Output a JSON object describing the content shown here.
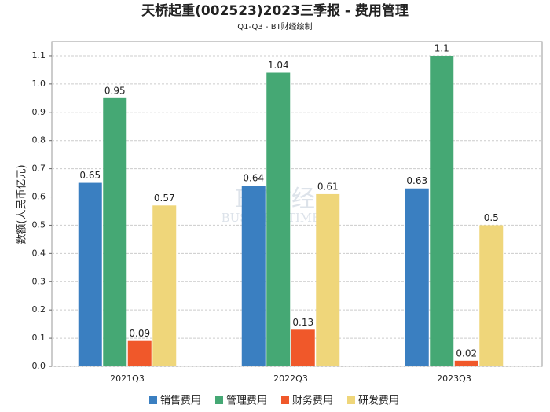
{
  "chart_data": {
    "type": "bar",
    "title": "天桥起重(002523)2023三季报 - 费用管理",
    "subtitle": "Q1-Q3 - BT财经绘制",
    "ylabel": "数额(人民币亿元)",
    "watermark": [
      "BT财经",
      "BUSINESSTIMES"
    ],
    "categories": [
      "2021Q3",
      "2022Q3",
      "2023Q3"
    ],
    "series": [
      {
        "name": "销售费用",
        "color": "#3a7fc1",
        "values": [
          0.65,
          0.64,
          0.63
        ]
      },
      {
        "name": "管理费用",
        "color": "#45a874",
        "values": [
          0.95,
          1.04,
          1.1
        ]
      },
      {
        "name": "财务费用",
        "color": "#f0582a",
        "values": [
          0.09,
          0.13,
          0.02
        ]
      },
      {
        "name": "研发费用",
        "color": "#efd67a",
        "values": [
          0.57,
          0.61,
          0.5
        ]
      }
    ],
    "ylim": [
      0,
      1.15
    ],
    "yticks": [
      {
        "value": 0,
        "label": "0.0"
      },
      0.1,
      0.2,
      0.3,
      0.4,
      0.5,
      0.6,
      0.7,
      0.8,
      0.9,
      {
        "value": 1,
        "label": "1.0"
      },
      1.1
    ],
    "grid": true,
    "legend": "bottom"
  }
}
